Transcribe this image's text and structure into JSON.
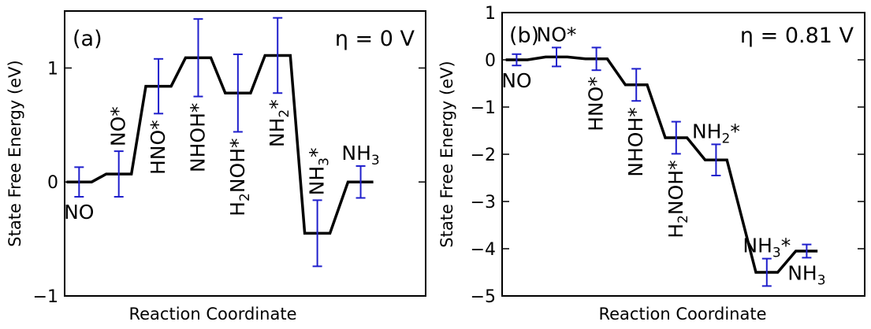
{
  "chart_data": [
    {
      "type": "line",
      "panel_label": "(a)",
      "annotation": "η = 0 V",
      "xlabel": "Reaction Coordinate",
      "ylabel": "State Free Energy (eV)",
      "ylim": [
        -1,
        1.5
      ],
      "yticks": [
        {
          "value": -1,
          "label": "−1"
        },
        {
          "value": 0,
          "label": "0"
        },
        {
          "value": 1,
          "label": "1"
        }
      ],
      "states": [
        {
          "label": "NO",
          "sub": "",
          "suffix": "",
          "value": 0.0,
          "err": 0.13,
          "label_pos": "below",
          "rotate": false
        },
        {
          "label": "NO*",
          "sub": "",
          "suffix": "",
          "value": 0.07,
          "err": 0.2,
          "label_pos": "above",
          "rotate": true
        },
        {
          "label": "HNO*",
          "sub": "",
          "suffix": "",
          "value": 0.84,
          "err": 0.24,
          "label_pos": "below",
          "rotate": true
        },
        {
          "label": "NHOH*",
          "sub": "",
          "suffix": "",
          "value": 1.09,
          "err": 0.34,
          "label_pos": "below",
          "rotate": true
        },
        {
          "label": "H",
          "sub": "2",
          "suffix": "NOH*",
          "value": 0.78,
          "err": 0.34,
          "label_pos": "below",
          "rotate": true
        },
        {
          "label": "NH",
          "sub": "2",
          "suffix": "*",
          "value": 1.11,
          "err": 0.33,
          "label_pos": "below",
          "rotate": true
        },
        {
          "label": "NH",
          "sub": "3",
          "suffix": "*",
          "value": -0.45,
          "err": 0.29,
          "label_pos": "above",
          "rotate": true
        },
        {
          "label": "NH",
          "sub": "3",
          "suffix": "",
          "value": 0.0,
          "err": 0.14,
          "label_pos": "above",
          "rotate": false
        }
      ]
    },
    {
      "type": "line",
      "panel_label": "(b)",
      "annotation": "η = 0.81 V",
      "xlabel": "Reaction Coordinate",
      "ylabel": "State Free Energy (eV)",
      "ylim": [
        -5,
        1
      ],
      "yticks": [
        {
          "value": 1,
          "label": "1"
        },
        {
          "value": 0,
          "label": "0"
        },
        {
          "value": -1,
          "label": "−1"
        },
        {
          "value": -2,
          "label": "−2"
        },
        {
          "value": -3,
          "label": "−3"
        },
        {
          "value": -4,
          "label": "−4"
        },
        {
          "value": -5,
          "label": "−5"
        }
      ],
      "states": [
        {
          "label": "NO",
          "sub": "",
          "suffix": "",
          "value": 0.0,
          "err": 0.12,
          "label_pos": "below",
          "rotate": false
        },
        {
          "label": "NO*",
          "sub": "",
          "suffix": "",
          "value": 0.06,
          "err": 0.2,
          "label_pos": "above",
          "rotate": false
        },
        {
          "label": "HNO*",
          "sub": "",
          "suffix": "",
          "value": 0.02,
          "err": 0.24,
          "label_pos": "below",
          "rotate": true
        },
        {
          "label": "NHOH*",
          "sub": "",
          "suffix": "",
          "value": -0.53,
          "err": 0.34,
          "label_pos": "below",
          "rotate": true
        },
        {
          "label": "H",
          "sub": "2",
          "suffix": "NOH*",
          "value": -1.65,
          "err": 0.34,
          "label_pos": "below",
          "rotate": true
        },
        {
          "label": "NH",
          "sub": "2",
          "suffix": "*",
          "value": -2.12,
          "err": 0.33,
          "label_pos": "above",
          "rotate": false
        },
        {
          "label": "NH",
          "sub": "3",
          "suffix": "*",
          "value": -4.5,
          "err": 0.29,
          "label_pos": "above",
          "rotate": false
        },
        {
          "label": "NH",
          "sub": "3",
          "suffix": "",
          "value": -4.05,
          "err": 0.14,
          "label_pos": "below",
          "rotate": false
        }
      ]
    }
  ],
  "colors": {
    "line": "#000000",
    "errorbar": "#1f1fcc"
  }
}
